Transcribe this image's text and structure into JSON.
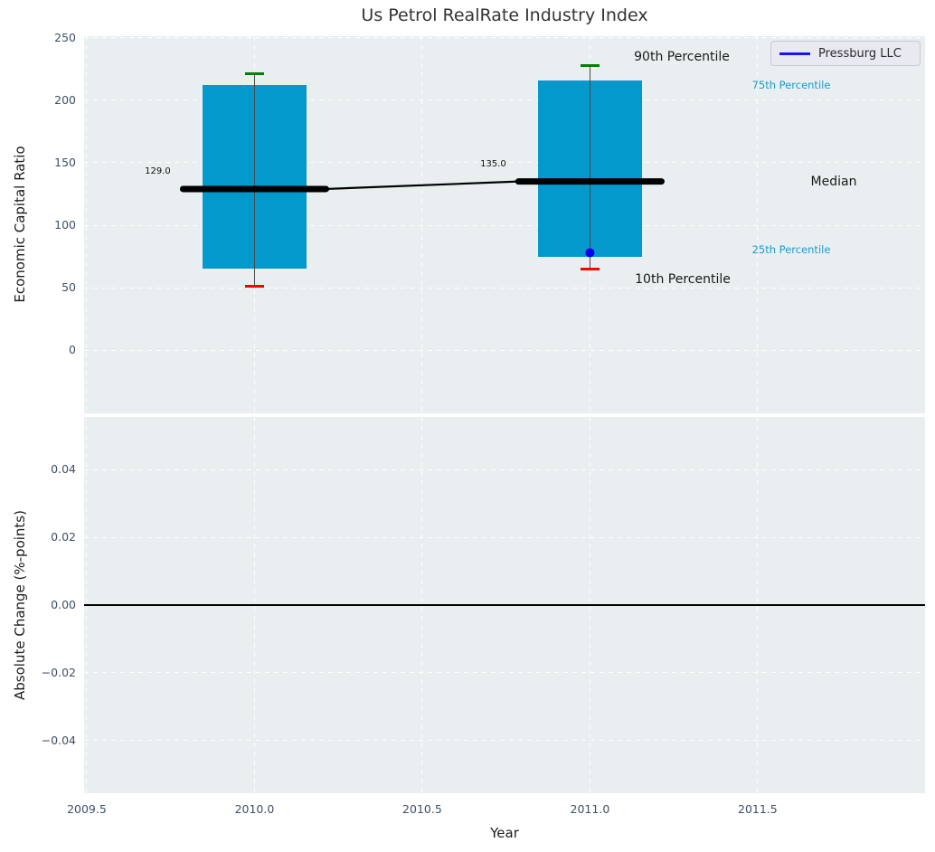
{
  "title": "Us Petrol RealRate Industry Index",
  "legend": {
    "label": "Pressburg LLC",
    "position": "upper right"
  },
  "percentile_labels": {
    "p90": "90th Percentile",
    "p75": "75th Percentile",
    "median": "Median",
    "p25": "25th Percentile",
    "p10": "10th Percentile"
  },
  "colors": {
    "bar": "#0499cd",
    "p90_cap": "#008000",
    "p10_cap": "#fe0000",
    "median_line": "#000000",
    "company": "#0000ee",
    "legend_line": "#1414ff",
    "axes_bg": "#e9eef0",
    "grid": "#ffffff",
    "tick_text": "#3e5068",
    "cyan_label": "#1b9ccc"
  },
  "chart_data": {
    "type": "box",
    "variant": "box-whisker-timeseries",
    "title": "Us Petrol RealRate Industry Index",
    "xlabel": "Year",
    "grid": "white dashed on light gray background",
    "legend_position": "upper right",
    "xlim": [
      2009.492,
      2011.999
    ],
    "x_ticks": [
      {
        "v": 2009.5,
        "label": "2009.5"
      },
      {
        "v": 2010.0,
        "label": "2010.0"
      },
      {
        "v": 2010.5,
        "label": "2010.5"
      },
      {
        "v": 2011.0,
        "label": "2011.0"
      },
      {
        "v": 2011.5,
        "label": "2011.5"
      }
    ],
    "panels": [
      {
        "name": "top",
        "ylabel": "Economic Capital Ratio",
        "ylim": [
          -50.4,
          251.2
        ],
        "y_ticks": [
          {
            "v": 0,
            "label": "0"
          },
          {
            "v": 50,
            "label": "50"
          },
          {
            "v": 100,
            "label": "100"
          },
          {
            "v": 150,
            "label": "150"
          },
          {
            "v": 200,
            "label": "200"
          },
          {
            "v": 250,
            "label": "250"
          }
        ]
      },
      {
        "name": "bottom",
        "ylabel": "Absolute Change (%-points)",
        "ylim": [
          -0.0556,
          0.0556
        ],
        "zero_line": true,
        "y_ticks": [
          {
            "v": -0.04,
            "label": "−0.04"
          },
          {
            "v": -0.02,
            "label": "−0.02"
          },
          {
            "v": 0.0,
            "label": "0.00"
          },
          {
            "v": 0.02,
            "label": "0.02"
          },
          {
            "v": 0.04,
            "label": "0.04"
          }
        ]
      }
    ],
    "boxes": [
      {
        "year": 2010,
        "p10": 51,
        "p25": 65,
        "median": 129,
        "p75": 212,
        "p90": 221,
        "median_label": "129.0"
      },
      {
        "year": 2011,
        "p10": 65,
        "p25": 75,
        "median": 135,
        "p75": 216,
        "p90": 228,
        "median_label": "135.0"
      }
    ],
    "company_series": {
      "name": "Pressburg LLC",
      "points": [
        [
          2011,
          78
        ]
      ]
    },
    "box_width_years": 0.31,
    "median_width_years": 0.426,
    "cap_width_years": 0.057
  }
}
